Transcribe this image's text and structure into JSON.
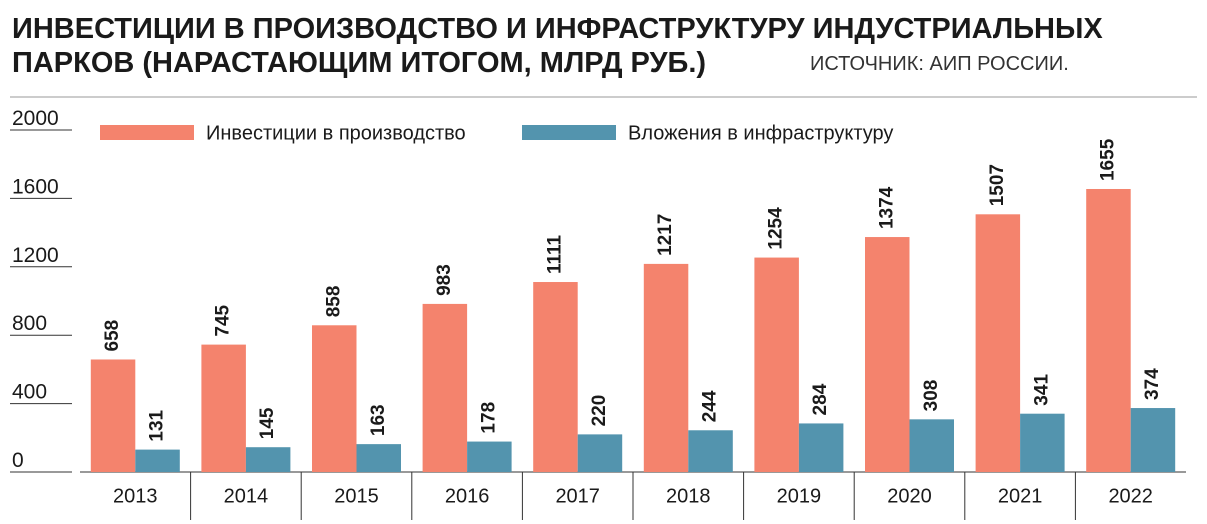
{
  "chart_data": {
    "type": "bar",
    "title": [
      "ИНВЕСТИЦИИ В ПРОИЗВОДСТВО И ИНФРАСТРУКТУРУ ИНДУСТРИАЛЬНЫХ",
      "ПАРКОВ (НАРАСТАЮЩИМ ИТОГОМ, МЛРД РУБ.)"
    ],
    "source": "ИСТОЧНИК: АИП РОССИИ.",
    "categories": [
      "2013",
      "2014",
      "2015",
      "2016",
      "2017",
      "2018",
      "2019",
      "2020",
      "2021",
      "2022"
    ],
    "series": [
      {
        "name": "Инвестиции в производство",
        "color": "#f4836d",
        "values": [
          658,
          745,
          858,
          983,
          1111,
          1217,
          1254,
          1374,
          1507,
          1655
        ]
      },
      {
        "name": "Вложения в инфраструктуру",
        "color": "#5394ae",
        "values": [
          131,
          145,
          163,
          178,
          220,
          244,
          284,
          308,
          341,
          374
        ]
      }
    ],
    "ylim": [
      0,
      2000
    ],
    "yticks": [
      0,
      400,
      800,
      1200,
      1600,
      2000
    ],
    "data_labels": true
  }
}
